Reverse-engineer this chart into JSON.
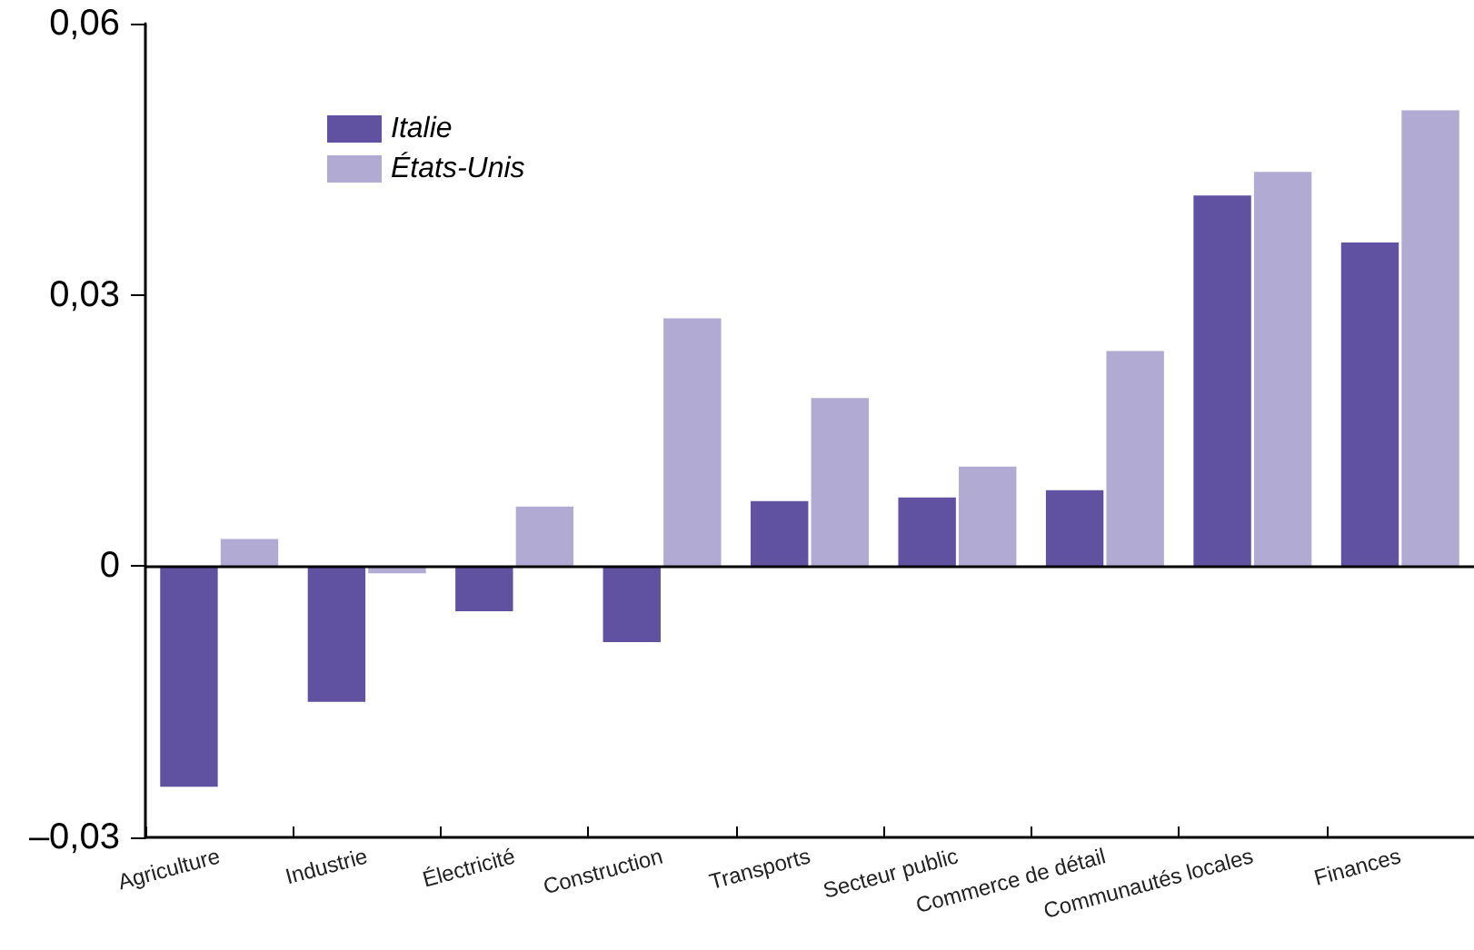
{
  "chart_data": {
    "type": "bar",
    "categories": [
      "Agriculture",
      "Industrie",
      "Électricité",
      "Construction",
      "Transports",
      "Secteur public",
      "Commerce de détail",
      "Communautés locales",
      "Finances"
    ],
    "series": [
      {
        "name": "Italie",
        "color": "#6151a1",
        "values": [
          -0.0244,
          -0.015,
          -0.005,
          -0.0084,
          0.0072,
          0.0076,
          0.0084,
          0.041,
          0.0358
        ]
      },
      {
        "name": "États-Unis",
        "color": "#b1aad2",
        "values": [
          0.003,
          -0.0008,
          0.0066,
          0.0274,
          0.0186,
          0.011,
          0.0238,
          0.0436,
          0.0504
        ]
      }
    ],
    "ylim": [
      -0.03,
      0.06
    ],
    "yticks": [
      {
        "value": -0.03,
        "label": "–0,03"
      },
      {
        "value": 0,
        "label": "0"
      },
      {
        "value": 0.03,
        "label": "0,03"
      },
      {
        "value": 0.06,
        "label": "0,06"
      }
    ],
    "ref_lines": [
      {
        "axis": "y",
        "value": 0,
        "color": "#000000"
      }
    ],
    "legend": "top left"
  }
}
